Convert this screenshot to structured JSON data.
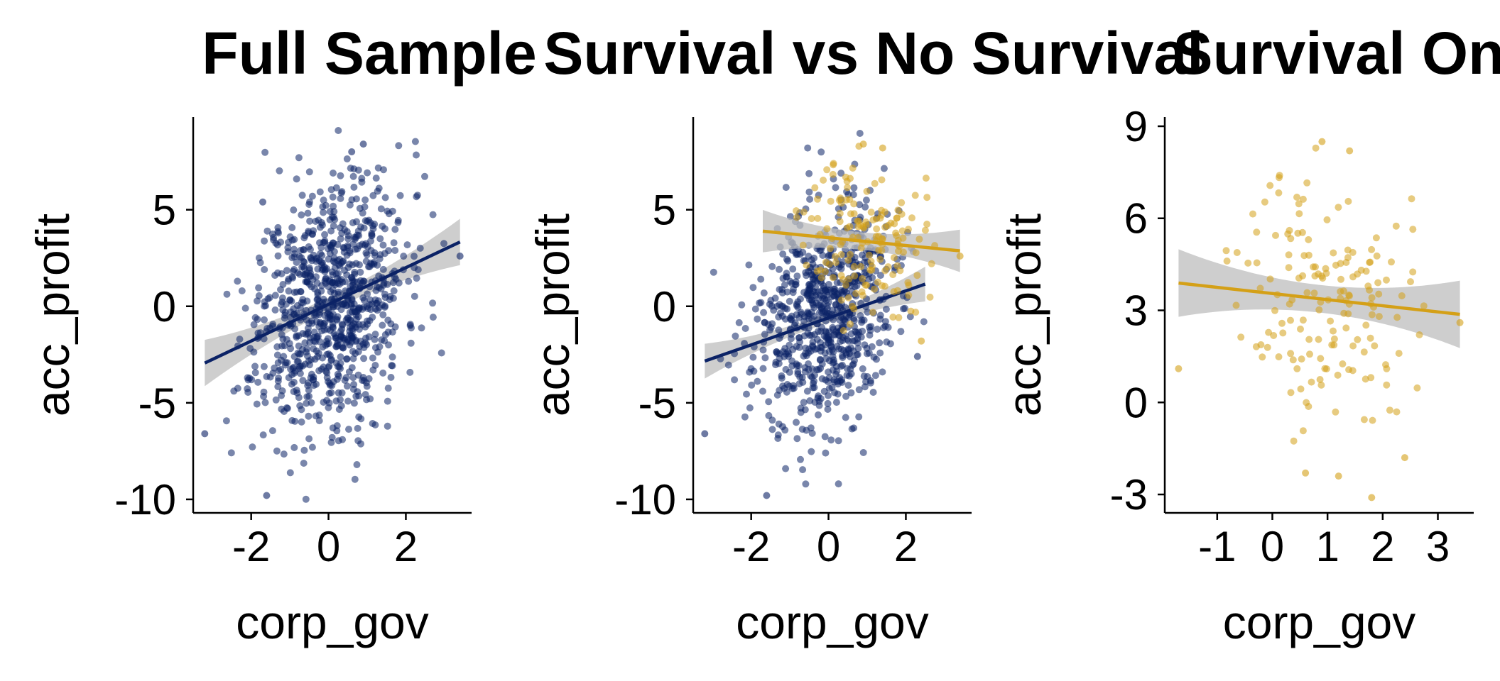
{
  "colors": {
    "no_survival": "#0b2266",
    "survival": "#d4a017",
    "band": "#bdbdbd"
  },
  "chart_data": [
    {
      "type": "scatter",
      "title": "Full Sample",
      "xlabel": "corp_gov",
      "ylabel": "acc_profit",
      "xlim": [
        -3.5,
        3.7
      ],
      "ylim": [
        -10.7,
        9.8
      ],
      "xticks": [
        -2,
        0,
        2
      ],
      "xtick_labels": [
        "-2",
        "0",
        "2"
      ],
      "yticks": [
        -10,
        -5,
        0,
        5
      ],
      "ytick_labels": [
        "-10",
        "-5",
        "0",
        "5"
      ],
      "series": [
        {
          "color_key": "no_survival",
          "point_cloud": {
            "n": 900,
            "x_mean": 0.05,
            "x_sd": 0.95,
            "y_mean": 0.2,
            "y_sd": 3.2,
            "slope": 0.9,
            "seed": 11
          },
          "points": [
            [
              -3.2,
              -6.6
            ],
            [
              -1.6,
              -9.8
            ],
            [
              0.9,
              8.4
            ],
            [
              3.4,
              2.6
            ],
            [
              -1.7,
              5.4
            ],
            [
              0.6,
              8.0
            ]
          ],
          "regression": {
            "intercept": 0.1,
            "slope": 0.95,
            "x_range": [
              -3.2,
              3.4
            ],
            "ci_half": [
              0.35,
              1.2
            ]
          }
        }
      ]
    },
    {
      "type": "scatter",
      "title": "Survival vs No Survival",
      "xlabel": "corp_gov",
      "ylabel": "acc_profit",
      "xlim": [
        -3.5,
        3.7
      ],
      "ylim": [
        -10.7,
        9.8
      ],
      "xticks": [
        -2,
        0,
        2
      ],
      "xtick_labels": [
        "-2",
        "0",
        "2"
      ],
      "yticks": [
        -10,
        -5,
        0,
        5
      ],
      "ytick_labels": [
        "-10",
        "-5",
        "0",
        "5"
      ],
      "series": [
        {
          "color_key": "no_survival",
          "point_cloud": {
            "n": 740,
            "x_mean": -0.15,
            "x_sd": 0.9,
            "y_mean": -0.6,
            "y_sd": 2.8,
            "slope": 0.7,
            "seed": 23
          },
          "points": [
            [
              -3.2,
              -6.6
            ],
            [
              -1.6,
              -9.8
            ],
            [
              2.3,
              -2.6
            ]
          ],
          "regression": {
            "intercept": -0.6,
            "slope": 0.7,
            "x_range": [
              -3.2,
              2.5
            ],
            "ci_half": [
              0.25,
              0.9
            ]
          }
        },
        {
          "color_key": "survival",
          "point_cloud": {
            "n": 160,
            "x_mean": 0.95,
            "x_sd": 0.75,
            "y_mean": 3.4,
            "y_sd": 2.0,
            "slope": -0.2,
            "seed": 37
          },
          "points": [
            [
              0.9,
              8.4
            ],
            [
              1.4,
              8.2
            ],
            [
              3.4,
              2.6
            ],
            [
              2.4,
              -1.8
            ]
          ],
          "regression": {
            "intercept": 3.55,
            "slope": -0.2,
            "x_range": [
              -1.7,
              3.4
            ],
            "ci_half": [
              0.45,
              1.1
            ]
          }
        }
      ]
    },
    {
      "type": "scatter",
      "title": "Survival Only",
      "xlabel": "corp_gov",
      "ylabel": "acc_profit",
      "xlim": [
        -1.95,
        3.65
      ],
      "ylim": [
        -3.6,
        9.3
      ],
      "xticks": [
        -1,
        0,
        1,
        2,
        3
      ],
      "xtick_labels": [
        "-1",
        "0",
        "1",
        "2",
        "3"
      ],
      "yticks": [
        -3,
        0,
        3,
        6,
        9
      ],
      "ytick_labels": [
        "-3",
        "0",
        "3",
        "6",
        "9"
      ],
      "series": [
        {
          "color_key": "survival",
          "point_cloud": {
            "n": 160,
            "x_mean": 0.95,
            "x_sd": 0.75,
            "y_mean": 3.4,
            "y_sd": 2.0,
            "slope": -0.2,
            "seed": 37
          },
          "points": [
            [
              0.9,
              8.5
            ],
            [
              1.4,
              8.2
            ],
            [
              3.4,
              2.6
            ],
            [
              -1.7,
              1.1
            ],
            [
              0.6,
              -2.3
            ],
            [
              1.2,
              -2.4
            ],
            [
              1.8,
              -3.1
            ],
            [
              2.4,
              -1.8
            ]
          ],
          "regression": {
            "intercept": 3.55,
            "slope": -0.2,
            "x_range": [
              -1.7,
              3.4
            ],
            "ci_half": [
              0.45,
              1.1
            ]
          }
        }
      ]
    }
  ]
}
